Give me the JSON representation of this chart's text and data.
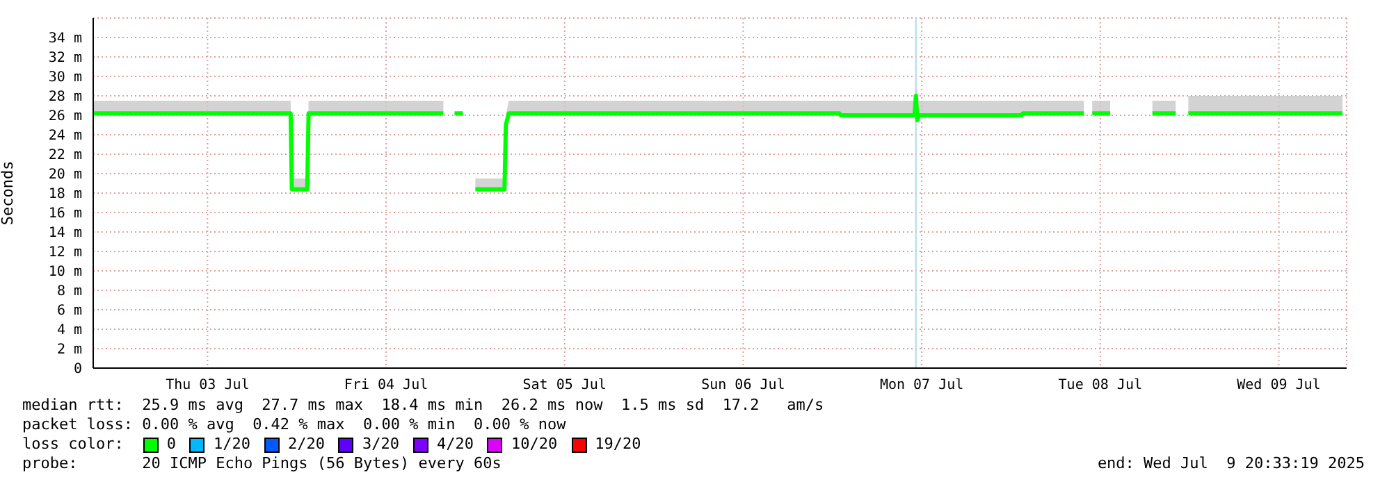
{
  "chart_data": {
    "type": "line",
    "ylabel": "Seconds",
    "x": [
      "2025-07-02T20:38",
      "2025-07-03T23:10",
      "2025-07-03T23:20",
      "2025-07-04T01:24",
      "2025-07-04T01:35",
      "2025-07-04T19:42",
      "2025-07-04T20:30",
      "2025-07-04T21:12",
      "2025-07-04T22:19",
      "2025-07-04T23:10",
      "2025-07-05T00:00",
      "2025-07-05T03:55",
      "2025-07-05T04:06",
      "2025-07-05T04:29",
      "2025-07-07T00:56",
      "2025-07-07T01:07",
      "2025-07-07T11:02",
      "2025-07-07T11:13",
      "2025-07-07T11:24",
      "2025-07-07T11:35",
      "2025-07-08T01:24",
      "2025-07-08T01:35",
      "2025-07-08T09:48",
      "2025-07-08T10:20",
      "2025-07-08T10:55",
      "2025-07-08T13:20",
      "2025-07-08T16:00",
      "2025-07-08T19:00",
      "2025-07-08T22:08",
      "2025-07-08T23:00",
      "2025-07-08T23:50",
      "2025-07-09T20:33"
    ],
    "series": [
      {
        "name": "0",
        "color": "#00ff00",
        "values": [
          26.2,
          26.2,
          18.4,
          18.4,
          26.2,
          26.2,
          null,
          26.2,
          26.2,
          null,
          18.4,
          18.4,
          25.0,
          26.2,
          26.2,
          26.0,
          26.0,
          28.0,
          25.5,
          26.0,
          26.0,
          26.2,
          26.2,
          null,
          26.2,
          26.2,
          null,
          26.2,
          26.2,
          null,
          26.2,
          26.2
        ],
        "lower": [
          26.2,
          26.2,
          18.4,
          18.4,
          26.2,
          26.2,
          null,
          null,
          null,
          null,
          18.4,
          18.4,
          25.0,
          26.2,
          26.2,
          26.0,
          26.0,
          28.0,
          25.5,
          26.0,
          26.0,
          26.2,
          26.2,
          null,
          26.2,
          26.2,
          null,
          26.2,
          26.2,
          null,
          26.2,
          26.2
        ],
        "upper": [
          27.5,
          27.5,
          19.5,
          19.5,
          27.5,
          27.5,
          null,
          null,
          null,
          null,
          19.5,
          19.5,
          26.0,
          27.5,
          27.5,
          27.5,
          27.5,
          29.0,
          28.5,
          27.5,
          27.5,
          27.5,
          27.5,
          null,
          27.5,
          27.5,
          null,
          27.5,
          27.5,
          null,
          28.0,
          28.0
        ]
      },
      {
        "name": "1/20",
        "color": "#00b8ff",
        "values": [
          null,
          null,
          null,
          null,
          null,
          null,
          null,
          null,
          null,
          null,
          null,
          null,
          null,
          null,
          null,
          null,
          null,
          null,
          null,
          null,
          null,
          null,
          null,
          null,
          null,
          null,
          null,
          null,
          null,
          null,
          null,
          null
        ]
      },
      {
        "name": "2/20",
        "color": "#0059ff",
        "values": [
          null,
          null,
          null,
          null,
          null,
          null,
          null,
          null,
          null,
          null,
          null,
          null,
          null,
          null,
          null,
          null,
          null,
          null,
          null,
          null,
          null,
          null,
          null,
          null,
          null,
          null,
          null,
          null,
          null,
          null,
          null,
          null
        ]
      },
      {
        "name": "3/20",
        "color": "#5e00ff",
        "values": [
          null,
          null,
          null,
          null,
          null,
          null,
          null,
          null,
          null,
          null,
          null,
          null,
          null,
          null,
          null,
          null,
          null,
          null,
          null,
          null,
          null,
          null,
          null,
          null,
          null,
          null,
          null,
          null,
          null,
          null,
          null,
          null
        ]
      },
      {
        "name": "4/20",
        "color": "#7e00ff",
        "values": [
          null,
          null,
          null,
          null,
          null,
          null,
          null,
          null,
          null,
          null,
          null,
          null,
          null,
          null,
          null,
          null,
          null,
          null,
          null,
          null,
          null,
          null,
          null,
          null,
          null,
          null,
          null,
          null,
          null,
          null,
          null,
          null
        ]
      },
      {
        "name": "10/20",
        "color": "#dd00ff",
        "values": [
          null,
          null,
          null,
          null,
          null,
          null,
          null,
          null,
          null,
          null,
          null,
          null,
          null,
          null,
          null,
          null,
          null,
          null,
          null,
          null,
          null,
          null,
          null,
          null,
          null,
          null,
          null,
          null,
          null,
          null,
          null,
          null
        ]
      },
      {
        "name": "19/20",
        "color": "#ff0000",
        "values": [
          null,
          null,
          null,
          null,
          null,
          null,
          null,
          null,
          null,
          null,
          null,
          null,
          null,
          null,
          null,
          null,
          null,
          null,
          null,
          null,
          null,
          null,
          null,
          null,
          null,
          null,
          null,
          null,
          null,
          null,
          null,
          null
        ]
      }
    ],
    "xlim": [
      "2025-07-02T20:38",
      "2025-07-09T21:07"
    ],
    "xticks": [
      {
        "value": "2025-07-03T12:00",
        "label": "Thu 03 Jul"
      },
      {
        "value": "2025-07-04T12:00",
        "label": "Fri 04 Jul"
      },
      {
        "value": "2025-07-05T12:00",
        "label": "Sat 05 Jul"
      },
      {
        "value": "2025-07-06T12:00",
        "label": "Sun 06 Jul"
      },
      {
        "value": "2025-07-07T12:00",
        "label": "Mon 07 Jul"
      },
      {
        "value": "2025-07-08T12:00",
        "label": "Tue 08 Jul"
      },
      {
        "value": "2025-07-09T12:00",
        "label": "Wed 09 Jul"
      }
    ],
    "ylim": [
      0,
      36
    ],
    "yticks": [
      0,
      {
        "value": 2,
        "label": "2 m"
      },
      {
        "value": 4,
        "label": "4 m"
      },
      {
        "value": 6,
        "label": "6 m"
      },
      {
        "value": 8,
        "label": "8 m"
      },
      {
        "value": 10,
        "label": "10 m"
      },
      {
        "value": 12,
        "label": "12 m"
      },
      {
        "value": 14,
        "label": "14 m"
      },
      {
        "value": 16,
        "label": "16 m"
      },
      {
        "value": 18,
        "label": "18 m"
      },
      {
        "value": 20,
        "label": "20 m"
      },
      {
        "value": 22,
        "label": "22 m"
      },
      {
        "value": 24,
        "label": "24 m"
      },
      {
        "value": 26,
        "label": "26 m"
      },
      {
        "value": 28,
        "label": "28 m"
      },
      {
        "value": 30,
        "label": "30 m"
      },
      {
        "value": 32,
        "label": "32 m"
      },
      {
        "value": 34,
        "label": "34 m"
      }
    ],
    "grid": true,
    "ref_lines": [
      {
        "axis": "x",
        "value": "2025-07-07T11:13",
        "label": null,
        "color": "#a8dde8"
      }
    ],
    "legend": "bottom",
    "legend_title": "loss color:",
    "annotations": [
      "median rtt:  25.9 ms avg  27.7 ms max  18.4 ms min  26.2 ms now  1.5 ms sd  17.2   am/s",
      "packet loss: 0.00 % avg  0.42 % max  0.00 % min  0.00 % now",
      "probe:       20 ICMP Echo Pings (56 Bytes) every 60s",
      "end: Wed Jul  9 20:33:19 2025"
    ]
  }
}
